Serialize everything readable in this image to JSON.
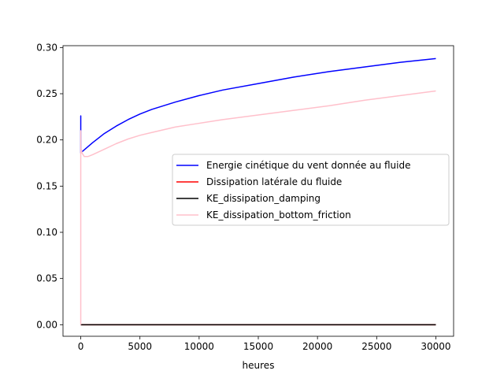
{
  "chart_data": {
    "type": "line",
    "title": "",
    "xlabel": "heures",
    "ylabel": "",
    "xlim": [
      -1500,
      31500
    ],
    "ylim": [
      -0.0125,
      0.302
    ],
    "xticks": [
      0,
      5000,
      10000,
      15000,
      20000,
      25000,
      30000
    ],
    "xtick_labels": [
      "0",
      "5000",
      "10000",
      "15000",
      "20000",
      "25000",
      "30000"
    ],
    "yticks": [
      0.0,
      0.05,
      0.1,
      0.15,
      0.2,
      0.25,
      0.3
    ],
    "ytick_labels": [
      "0.00",
      "0.05",
      "0.10",
      "0.15",
      "0.20",
      "0.25",
      "0.30"
    ],
    "grid": false,
    "legend_position": "center-right",
    "series": [
      {
        "name": "Energie cinétique du vent donnée au fluide",
        "color": "#0000ff",
        "x": [
          0,
          0,
          0,
          0,
          0,
          1000,
          2000,
          3000,
          4000,
          5000,
          6000,
          8000,
          10000,
          12000,
          15000,
          18000,
          21000,
          24000,
          27000,
          30000
        ],
        "y": [
          0.214,
          0.226,
          0.214,
          0.226,
          0.186,
          0.197,
          0.207,
          0.215,
          0.222,
          0.228,
          0.233,
          0.241,
          0.248,
          0.254,
          0.261,
          0.268,
          0.274,
          0.279,
          0.284,
          0.288
        ]
      },
      {
        "name": "Dissipation latérale du fluide",
        "color": "#ff0000",
        "x": [
          0,
          30000
        ],
        "y": [
          0.0,
          0.0
        ]
      },
      {
        "name": "KE_dissipation_damping",
        "color": "#000000",
        "x": [
          0,
          30000
        ],
        "y": [
          0.0,
          0.0
        ]
      },
      {
        "name": "KE_dissipation_bottom_friction",
        "color": "#ffc0cb",
        "x": [
          0,
          0,
          0,
          50,
          100,
          300,
          600,
          1000,
          1500,
          2000,
          3000,
          4000,
          5000,
          6000,
          8000,
          10000,
          12000,
          15000,
          18000,
          21000,
          24000,
          27000,
          30000
        ],
        "y": [
          0.0,
          0.21,
          0.186,
          0.19,
          0.186,
          0.182,
          0.182,
          0.184,
          0.187,
          0.19,
          0.196,
          0.201,
          0.205,
          0.208,
          0.214,
          0.218,
          0.222,
          0.227,
          0.232,
          0.237,
          0.243,
          0.248,
          0.253
        ]
      }
    ]
  }
}
